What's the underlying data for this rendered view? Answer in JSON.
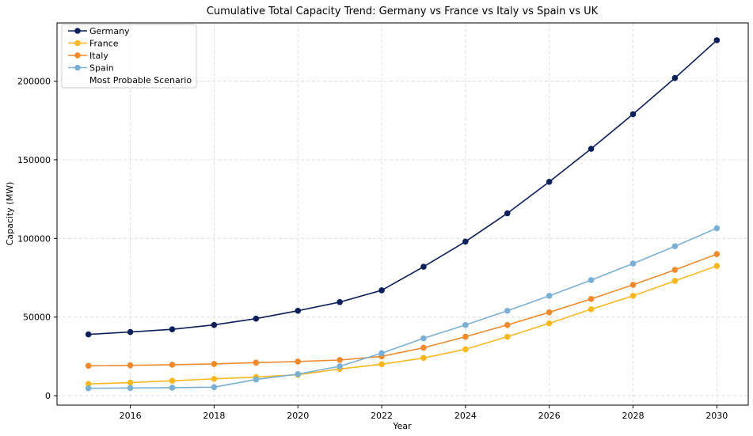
{
  "chart_data": {
    "type": "line",
    "title": "Cumulative Total Capacity Trend: Germany vs France vs Italy vs Spain vs UK",
    "xlabel": "Year",
    "ylabel": "Capacity (MW)",
    "x": [
      2015,
      2016,
      2017,
      2018,
      2019,
      2020,
      2021,
      2022,
      2023,
      2024,
      2025,
      2026,
      2027,
      2028,
      2029,
      2030
    ],
    "xlim": [
      2014.25,
      2030.75
    ],
    "ylim": [
      -6000,
      237000
    ],
    "xticks": [
      2016,
      2018,
      2020,
      2022,
      2024,
      2026,
      2028,
      2030
    ],
    "xtick_labels": [
      "2016",
      "2018",
      "2020",
      "2022",
      "2024",
      "2026",
      "2028",
      "2030"
    ],
    "yticks": [
      0,
      50000,
      100000,
      150000,
      200000
    ],
    "ytick_labels": [
      "0",
      "50000",
      "100000",
      "150000",
      "200000"
    ],
    "grid": true,
    "legend_position": "upper-left",
    "series": [
      {
        "name": "Germany",
        "color": "#0b1f5a",
        "values": [
          39000,
          40500,
          42200,
          45000,
          49000,
          54000,
          59500,
          67000,
          82000,
          98000,
          116000,
          136000,
          157000,
          179000,
          202000,
          226000
        ]
      },
      {
        "name": "France",
        "color": "#f9b81f",
        "values": [
          7500,
          8300,
          9500,
          10700,
          11800,
          13300,
          17000,
          20000,
          24000,
          29500,
          37500,
          46000,
          55000,
          63500,
          73000,
          82500
        ]
      },
      {
        "name": "Italy",
        "color": "#f08a2c",
        "values": [
          19000,
          19300,
          19700,
          20200,
          21000,
          21700,
          22700,
          25000,
          30500,
          37500,
          45000,
          53000,
          61500,
          70500,
          80000,
          90000
        ]
      },
      {
        "name": "Spain",
        "color": "#7ab0d4",
        "values": [
          4700,
          4900,
          5100,
          5400,
          10300,
          13700,
          18700,
          27000,
          36500,
          45000,
          54000,
          63500,
          73500,
          84000,
          95000,
          106500
        ]
      }
    ],
    "legend_extra_label": "Most Probable Scenario"
  }
}
